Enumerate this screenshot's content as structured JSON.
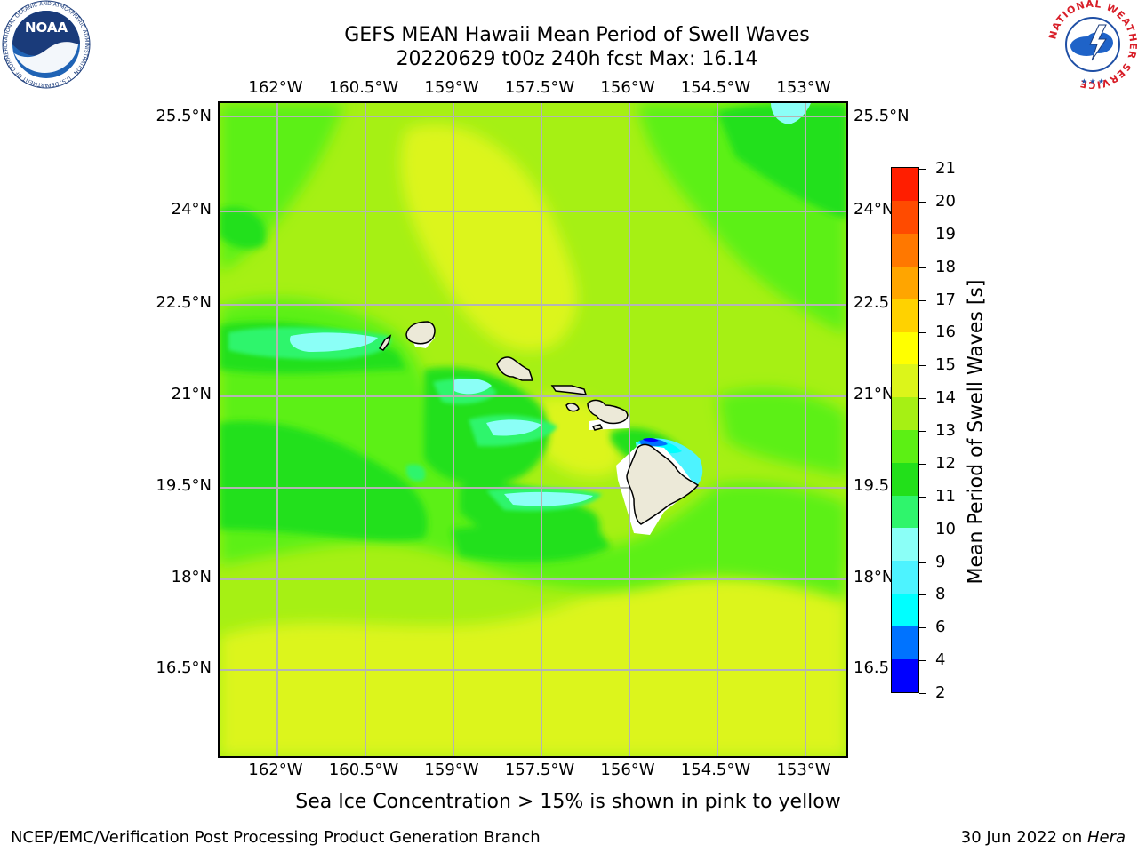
{
  "title": {
    "line1": "GEFS MEAN Hawaii Mean Period of Swell Waves",
    "line2": "20220629 t00z 240h fcst   Max: 16.14"
  },
  "axes": {
    "lon_labels": [
      "162°W",
      "160.5°W",
      "159°W",
      "157.5°W",
      "156°W",
      "154.5°W",
      "153°W"
    ],
    "lat_labels": [
      "25.5°N",
      "24°N",
      "22.5°N",
      "21°N",
      "19.5°N",
      "18°N",
      "16.5°N"
    ],
    "lat_labels_right": [
      "25.5°N",
      "24°N",
      "22.5",
      "21°N",
      "19.5",
      "18°N",
      "16.5"
    ]
  },
  "colorbar": {
    "title": "Mean Period of Swell Waves [s]",
    "tick_labels": [
      "21",
      "20",
      "19",
      "18",
      "17",
      "16",
      "15",
      "14",
      "13",
      "12",
      "11",
      "10",
      "9",
      "8",
      "6",
      "4",
      "2"
    ],
    "levels": [
      2,
      4,
      6,
      8,
      9,
      10,
      11,
      12,
      13,
      14,
      15,
      16,
      17,
      18,
      19,
      20,
      21
    ],
    "colors": [
      "#0000ff",
      "#0073ff",
      "#00ffff",
      "#4df3ff",
      "#8bfff7",
      "#2ff56c",
      "#22e01a",
      "#5cf014",
      "#a6f014",
      "#dcf51a",
      "#ffff00",
      "#ffd200",
      "#ffa500",
      "#ff7800",
      "#ff4b00",
      "#ff1e00"
    ]
  },
  "map": {
    "field_max": "16.14",
    "land_color": "#ece9d8",
    "grid_color": "#b4b4b4"
  },
  "caption": "Sea Ice Concentration > 15% is shown in pink to yellow",
  "footer": {
    "left": "NCEP/EMC/Verification Post Processing Product Generation Branch",
    "date": "30 Jun 2022 on ",
    "host": "Hera"
  },
  "logos": {
    "noaa_text": "NOAA",
    "noaa_ring": "NATIONAL OCEANIC AND ATMOSPHERIC ADMINISTRATION · U.S. DEPARTMENT OF COMMERCE",
    "nws_ring": "NATIONAL WEATHER SERVICE"
  }
}
